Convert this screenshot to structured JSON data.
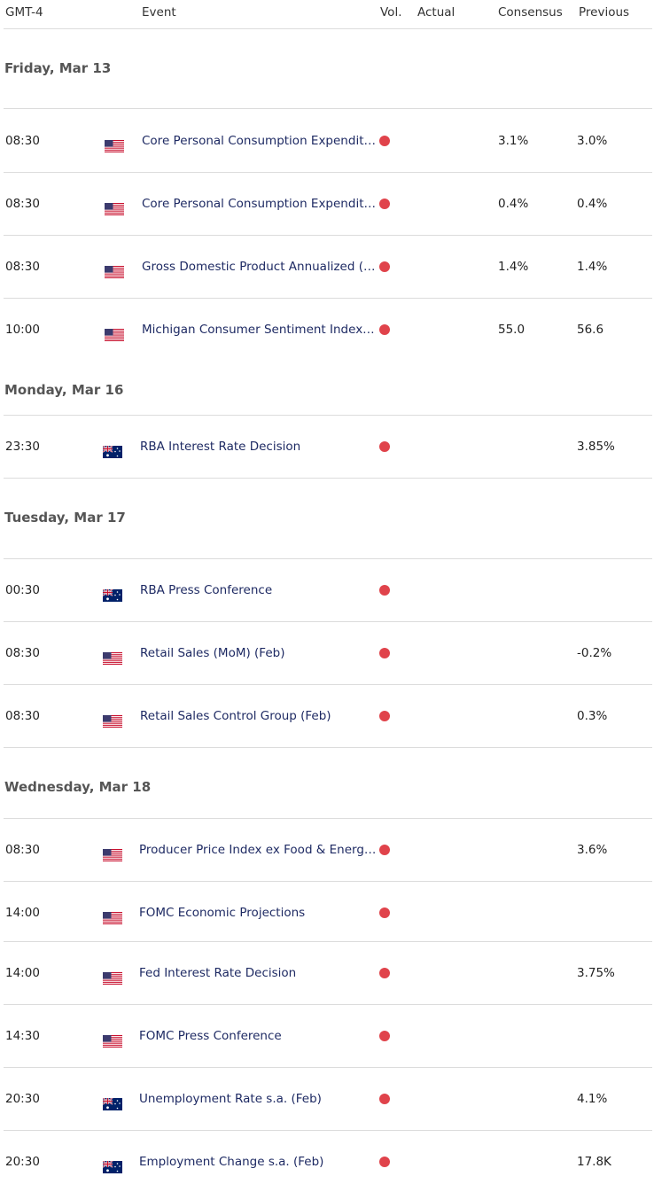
{
  "header": {
    "columns": [
      "GMT-4",
      "Event",
      "Vol.",
      "Actual",
      "Consensus",
      "Previous"
    ]
  },
  "days": [
    {
      "date": "Friday, Mar 13",
      "events": [
        {
          "time": "08:30",
          "event": "Core Personal Consumption Expendit…",
          "consensus": "3.1%",
          "previous": "3.0%"
        },
        {
          "time": "08:30",
          "event": "Core Personal Consumption Expendit…",
          "consensus": "0.4%",
          "previous": "0.4%"
        },
        {
          "time": "08:30",
          "event": "Gross Domestic Product Annualized (…",
          "consensus": "1.4%",
          "previous": "1.4%"
        },
        {
          "time": "10:00",
          "event": "Michigan Consumer Sentiment Index…",
          "consensus": "55.0",
          "previous": "56.6"
        }
      ]
    },
    {
      "date": "Monday, Mar 16",
      "events": [
        {
          "time": "23:30",
          "event": "RBA Interest Rate Decision",
          "previous": "3.85%"
        }
      ]
    },
    {
      "date": "Tuesday, Mar 17",
      "events": [
        {
          "time": "00:30",
          "event": "RBA Press Conference"
        },
        {
          "time": "08:30",
          "event": "Retail Sales (MoM) (Feb)",
          "previous": "-0.2%"
        },
        {
          "time": "08:30",
          "event": "Retail Sales Control Group (Feb)",
          "previous": "0.3%"
        }
      ]
    },
    {
      "date": "Wednesday, Mar 18",
      "events": [
        {
          "time": "08:30",
          "event": "Producer Price Index ex Food & Energ…",
          "previous": "3.6%"
        },
        {
          "time": "14:00",
          "event": "FOMC Economic Projections"
        },
        {
          "time": "14:00",
          "event": "Fed Interest Rate Decision",
          "previous": "3.75%"
        },
        {
          "time": "14:30",
          "event": "FOMC Press Conference"
        },
        {
          "time": "20:30",
          "event": "Unemployment Rate s.a. (Feb)",
          "previous": "4.1%"
        },
        {
          "time": "20:30",
          "event": "Employment Change s.a. (Feb)",
          "previous": "17.8K"
        }
      ]
    }
  ]
}
